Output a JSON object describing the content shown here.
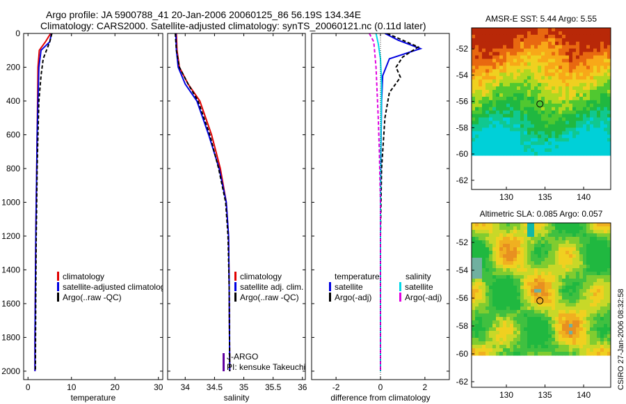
{
  "header": {
    "line1": "Argo profile: JA 5900788_41 20-Jan-2006 20060125_86 56.19S 134.34E",
    "line2": "Climatology: CARS2000. Satellite-adjusted climatology: synTS_20060121.nc (0.11d later)"
  },
  "side_label": "CSIRO 27-Jan-2006 08:32:58",
  "chart_data": [
    {
      "type": "line",
      "id": "temperature",
      "xlabel": "temperature",
      "xlim": [
        -1,
        31
      ],
      "ylim": [
        0,
        2050
      ],
      "xticks": [
        "0",
        "10",
        "20",
        "30"
      ],
      "yticks": [
        "0",
        "200",
        "400",
        "600",
        "800",
        "1000",
        "1200",
        "1400",
        "1600",
        "1800",
        "2000"
      ],
      "legend": [
        {
          "label": "climatology",
          "color": "#e00000"
        },
        {
          "label": "satellite-adjusted climatology",
          "color": "#0000e0"
        },
        {
          "label": "Argo(..raw -QC)",
          "color": "#000000"
        }
      ],
      "series": [
        {
          "name": "climatology",
          "color": "#e00000",
          "dash": "",
          "x": [
            5.2,
            4.0,
            2.6,
            2.3,
            2.2,
            2.1,
            2.0,
            1.9,
            1.8,
            1.7,
            1.6,
            1.6
          ],
          "y": [
            0,
            50,
            100,
            200,
            400,
            600,
            800,
            1000,
            1200,
            1500,
            1800,
            2000
          ]
        },
        {
          "name": "satellite-adjusted climatology",
          "color": "#0000e0",
          "dash": "",
          "x": [
            5.4,
            5.0,
            3.0,
            2.5,
            2.3,
            2.1,
            2.0,
            1.9,
            1.8,
            1.7,
            1.6,
            1.6
          ],
          "y": [
            0,
            50,
            100,
            200,
            400,
            600,
            800,
            1000,
            1200,
            1500,
            1800,
            2000
          ]
        },
        {
          "name": "Argo(..raw -QC)",
          "color": "#000000",
          "dash": "5,3",
          "x": [
            5.5,
            5.0,
            3.5,
            3.0,
            2.5,
            2.3,
            2.1,
            2.0,
            1.9,
            1.8,
            1.7
          ],
          "y": [
            0,
            50,
            150,
            250,
            400,
            600,
            800,
            1000,
            1200,
            1500,
            2000
          ]
        }
      ]
    },
    {
      "type": "line",
      "id": "salinity",
      "xlabel": "salinity",
      "xlim": [
        33.7,
        36.05
      ],
      "ylim": [
        0,
        2050
      ],
      "xticks": [
        "34",
        "34.5",
        "35",
        "35.5",
        "36"
      ],
      "legend": [
        {
          "label": "climatology",
          "color": "#e00000"
        },
        {
          "label": "satellite adj. clim.",
          "color": "#0000e0"
        },
        {
          "label": "Argo(..raw -QC)",
          "color": "#000000"
        }
      ],
      "annotation": [
        "J-ARGO",
        "PI: kensuke Takeuchi"
      ],
      "series": [
        {
          "name": "climatology",
          "color": "#e00000",
          "dash": "",
          "x": [
            33.85,
            33.86,
            33.9,
            34.05,
            34.25,
            34.45,
            34.6,
            34.7,
            34.74,
            34.75,
            34.76
          ],
          "y": [
            0,
            100,
            200,
            300,
            400,
            600,
            800,
            1000,
            1200,
            1500,
            2000
          ]
        },
        {
          "name": "satellite adj. clim.",
          "color": "#0000e0",
          "dash": "",
          "x": [
            33.84,
            33.85,
            33.88,
            34.0,
            34.2,
            34.4,
            34.58,
            34.7,
            34.74,
            34.75,
            34.76
          ],
          "y": [
            0,
            100,
            200,
            300,
            400,
            600,
            800,
            1000,
            1200,
            1500,
            2000
          ]
        },
        {
          "name": "Argo(..raw -QC)",
          "color": "#000000",
          "dash": "5,3",
          "x": [
            33.83,
            33.85,
            33.9,
            34.05,
            34.22,
            34.42,
            34.57,
            34.69,
            34.73,
            34.75,
            34.76
          ],
          "y": [
            0,
            100,
            200,
            300,
            400,
            600,
            800,
            1000,
            1200,
            1500,
            2000
          ]
        }
      ]
    },
    {
      "type": "line",
      "id": "difference",
      "xlabel": "difference from climatology",
      "xlim": [
        -3.1,
        3.1
      ],
      "ylim": [
        0,
        2050
      ],
      "xticks": [
        "-2",
        "0",
        "2"
      ],
      "legend_temperature_title": "temperature",
      "legend_salinity_title": "salinity",
      "legend": [
        {
          "label": "satellite",
          "color": "#0000e0"
        },
        {
          "label": "Argo(-adj)",
          "color": "#000000"
        },
        {
          "label": "satellite",
          "color": "#00d8e8"
        },
        {
          "label": "Argo(-adj)",
          "color": "#e000e0"
        }
      ],
      "series": [
        {
          "name": "temperature satellite",
          "color": "#0000e0",
          "dash": "",
          "x": [
            0.2,
            0.8,
            1.8,
            0.4,
            0.1,
            0.05,
            0.02,
            0,
            0
          ],
          "y": [
            0,
            40,
            90,
            150,
            250,
            400,
            700,
            1000,
            2000
          ]
        },
        {
          "name": "temperature Argo(-adj)",
          "color": "#000000",
          "dash": "5,3",
          "x": [
            0.3,
            1.0,
            1.7,
            1.0,
            0.7,
            0.9,
            0.4,
            0.2,
            0.05,
            0,
            0
          ],
          "y": [
            0,
            40,
            80,
            140,
            200,
            260,
            350,
            500,
            800,
            1200,
            2000
          ]
        },
        {
          "name": "salinity satellite",
          "color": "#00d8e8",
          "dash": "",
          "x": [
            -0.2,
            -0.1,
            0,
            0.05,
            0.03,
            0,
            0,
            0
          ],
          "y": [
            0,
            60,
            150,
            300,
            500,
            800,
            1200,
            2000
          ]
        },
        {
          "name": "salinity Argo(-adj)",
          "color": "#e000e0",
          "dash": "5,3",
          "x": [
            -0.5,
            -0.3,
            -0.2,
            -0.15,
            -0.1,
            -0.05,
            0,
            0
          ],
          "y": [
            0,
            50,
            200,
            350,
            500,
            700,
            1000,
            2000
          ]
        }
      ]
    },
    {
      "type": "heatmap",
      "id": "sst",
      "title": "AMSR-E SST: 5.44 Argo: 5.55",
      "xlim": [
        125.5,
        143.5
      ],
      "ylim": [
        -62.7,
        -50.4
      ],
      "xticks": [
        "130",
        "135",
        "140"
      ],
      "yticks": [
        "-52",
        "-54",
        "-56",
        "-58",
        "-60",
        "-62"
      ],
      "data_lat_range": [
        -60.1,
        -50.4
      ],
      "argo_position": {
        "lon": 134.34,
        "lat": -56.19
      }
    },
    {
      "type": "heatmap",
      "id": "sla",
      "title": "Altimetric SLA: 0.085 Argo: 0.057",
      "xlim": [
        125.5,
        143.5
      ],
      "ylim": [
        -62.4,
        -50.6
      ],
      "xticks": [
        "130",
        "135",
        "140"
      ],
      "yticks": [
        "-52",
        "-54",
        "-56",
        "-58",
        "-60",
        "-62"
      ],
      "data_lat_range": [
        -60.1,
        -50.6
      ],
      "argo_position": {
        "lon": 134.34,
        "lat": -56.19
      }
    }
  ]
}
